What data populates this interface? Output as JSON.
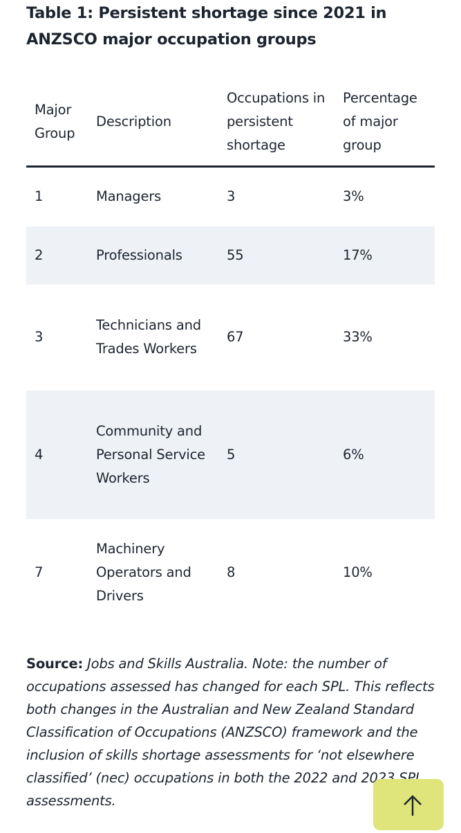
{
  "title": "Table 1: Persistent shortage since 2021 in ANZSCO major occupation groups",
  "table": {
    "header": [
      "Major Group",
      "Description",
      "Occupations in persistent shortage",
      "Percentage of major group"
    ],
    "rows": [
      [
        "1",
        "Managers",
        "3",
        "3%"
      ],
      [
        "2",
        "Professionals",
        "55",
        "17%"
      ],
      [
        "3",
        "Technicians and Trades Workers",
        "67",
        "33%"
      ],
      [
        "4",
        "Community and Personal Service Workers",
        "5",
        "6%"
      ],
      [
        "7",
        "Machinery Operators and Drivers",
        "8",
        "10%"
      ]
    ]
  },
  "source": {
    "label": "Source:",
    "text": "Jobs and Skills Australia. Note: the number of occupations assessed has changed for each SPL. This reflects both changes in the Australian and New Zealand Standard Classification of Occupations (ANZSCO) framework and the inclusion of skills shortage assessments for ‘not elsewhere classified’ (nec) occupations in both the 2022 and 2023 SPL assessments."
  }
}
